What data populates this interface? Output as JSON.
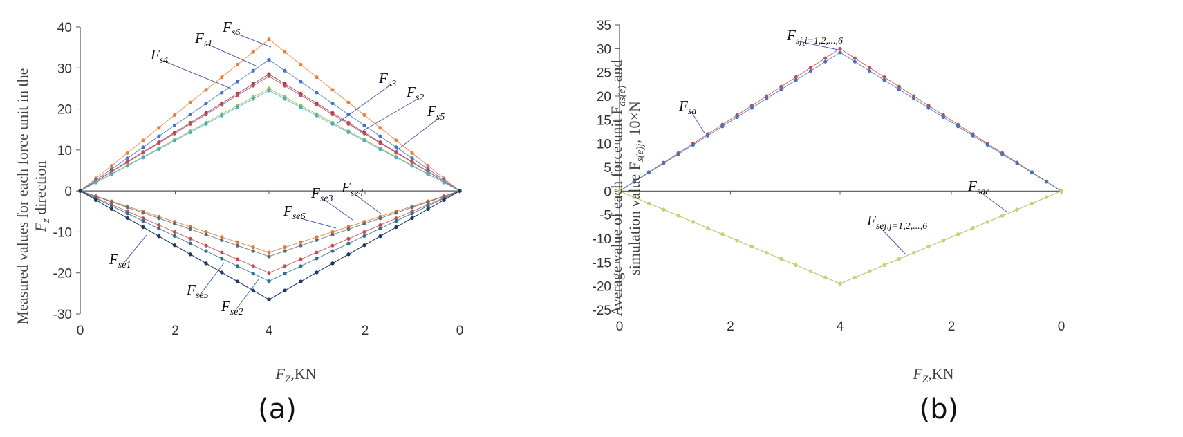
{
  "panels": [
    {
      "panel_label": "(a)",
      "chart_data": {
        "type": "line",
        "x_tick_labels": [
          "0",
          "2",
          "4",
          "2",
          "0"
        ],
        "xlabel_main": "F",
        "xlabel_sub": "Z",
        "xlabel_tail": ",KN",
        "ylabel_line1": "Measured values for each force unit in the",
        "ylabel_line2_main": "F",
        "ylabel_line2_sub": "z",
        "ylabel_line2_tail": " direction",
        "ylim": [
          -30,
          40
        ],
        "y_ticks": [
          40,
          30,
          20,
          10,
          0,
          -10,
          -20,
          -30
        ],
        "x_path": "loading 0 → 4 KN, unloading 4 → 0 KN",
        "series": [
          {
            "name_main": "F",
            "name_sub": "s6",
            "peak": 37,
            "color": "#ED7D31"
          },
          {
            "name_main": "F",
            "name_sub": "s1",
            "peak": 32,
            "color": "#4472C4"
          },
          {
            "name_main": "F",
            "name_sub": "s4",
            "peak": 28.5,
            "color": "#993366"
          },
          {
            "name_main": "F",
            "name_sub": "s3",
            "peak": 28,
            "color": "#C0504D"
          },
          {
            "name_main": "F",
            "name_sub": "s2",
            "peak": 25,
            "color": "#9BBB59"
          },
          {
            "name_main": "F",
            "name_sub": "s5",
            "peak": 24.5,
            "color": "#4BACC6"
          },
          {
            "name_main": "F",
            "name_sub": "se3",
            "peak": -15,
            "color": "#E07B39"
          },
          {
            "name_main": "F",
            "name_sub": "se4",
            "peak": -16,
            "color": "#5A6E7A"
          },
          {
            "name_main": "F",
            "name_sub": "se6",
            "peak": -20,
            "color": "#C0504D"
          },
          {
            "name_main": "F",
            "name_sub": "se5",
            "peak": -22,
            "color": "#2F6F8F"
          },
          {
            "name_main": "F",
            "name_sub": "se1",
            "peak": -26.5,
            "color": "#1F3864"
          },
          {
            "name_main": "F",
            "name_sub": "se2",
            "peak": -26.5,
            "color": "#1F3864"
          }
        ]
      }
    },
    {
      "panel_label": "(b)",
      "chart_data": {
        "type": "line",
        "x_tick_labels": [
          "0",
          "2",
          "4",
          "2",
          "0"
        ],
        "xlabel_main": "F",
        "xlabel_sub": "Z",
        "xlabel_tail": ",KN",
        "ylabel_line1_main": "Average value of each force unit F",
        "ylabel_line1_sub": "as(e)",
        "ylabel_line1_tail": " and",
        "ylabel_line2_main": "simulation value F",
        "ylabel_line2_sub": "s(e)j",
        "ylabel_line2_tail": ", 10×N",
        "ylim": [
          -25,
          35
        ],
        "y_ticks": [
          35,
          30,
          25,
          20,
          15,
          10,
          5,
          0,
          -5,
          -10,
          -15,
          -20,
          -25
        ],
        "x_path": "loading 0 → 4 KN, unloading 4 → 0 KN",
        "series": [
          {
            "name_main": "F",
            "name_sub": "sa",
            "peak": 30,
            "color": "#C0504D"
          },
          {
            "name_main": "F",
            "name_sub": "sj,j=1,2,...,6",
            "peak": 29.2,
            "color": "#4472C4"
          },
          {
            "name_main": "F",
            "name_sub": "sae",
            "peak": -19.5,
            "color": "#7F7F7F"
          },
          {
            "name_main": "F",
            "name_sub": "sej,j=1,2,...,6",
            "peak": -19.5,
            "color": "#C9D36B"
          }
        ]
      }
    }
  ]
}
